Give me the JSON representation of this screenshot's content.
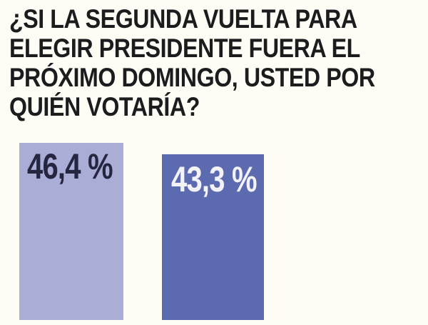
{
  "colors": {
    "background": "#fdfdf5",
    "question_text": "#1c1c1e"
  },
  "question": {
    "lines": [
      "¿SI LA SEGUNDA VUELTA PARA",
      "ELEGIR PRESIDENTE FUERA EL",
      "PRÓXIMO DOMINGO, USTED POR",
      "QUIÉN VOTARÍA?"
    ]
  },
  "chart_data": {
    "type": "bar",
    "orientation": "vertical",
    "title": "¿SI LA SEGUNDA VUELTA PARA ELEGIR PRESIDENTE FUERA EL PRÓXIMO DOMINGO, USTED POR QUIÉN VOTARÍA?",
    "values": [
      46.4,
      43.3
    ],
    "value_labels": [
      "46,4 %",
      "43,3 %"
    ],
    "bar_colors": [
      "#aaadd5",
      "#5c6ab0"
    ],
    "label_colors": [
      "#262640",
      "#f2f2f7"
    ],
    "ylim": [
      0,
      50
    ],
    "grid": false,
    "legend": false,
    "axes_visible": false
  }
}
